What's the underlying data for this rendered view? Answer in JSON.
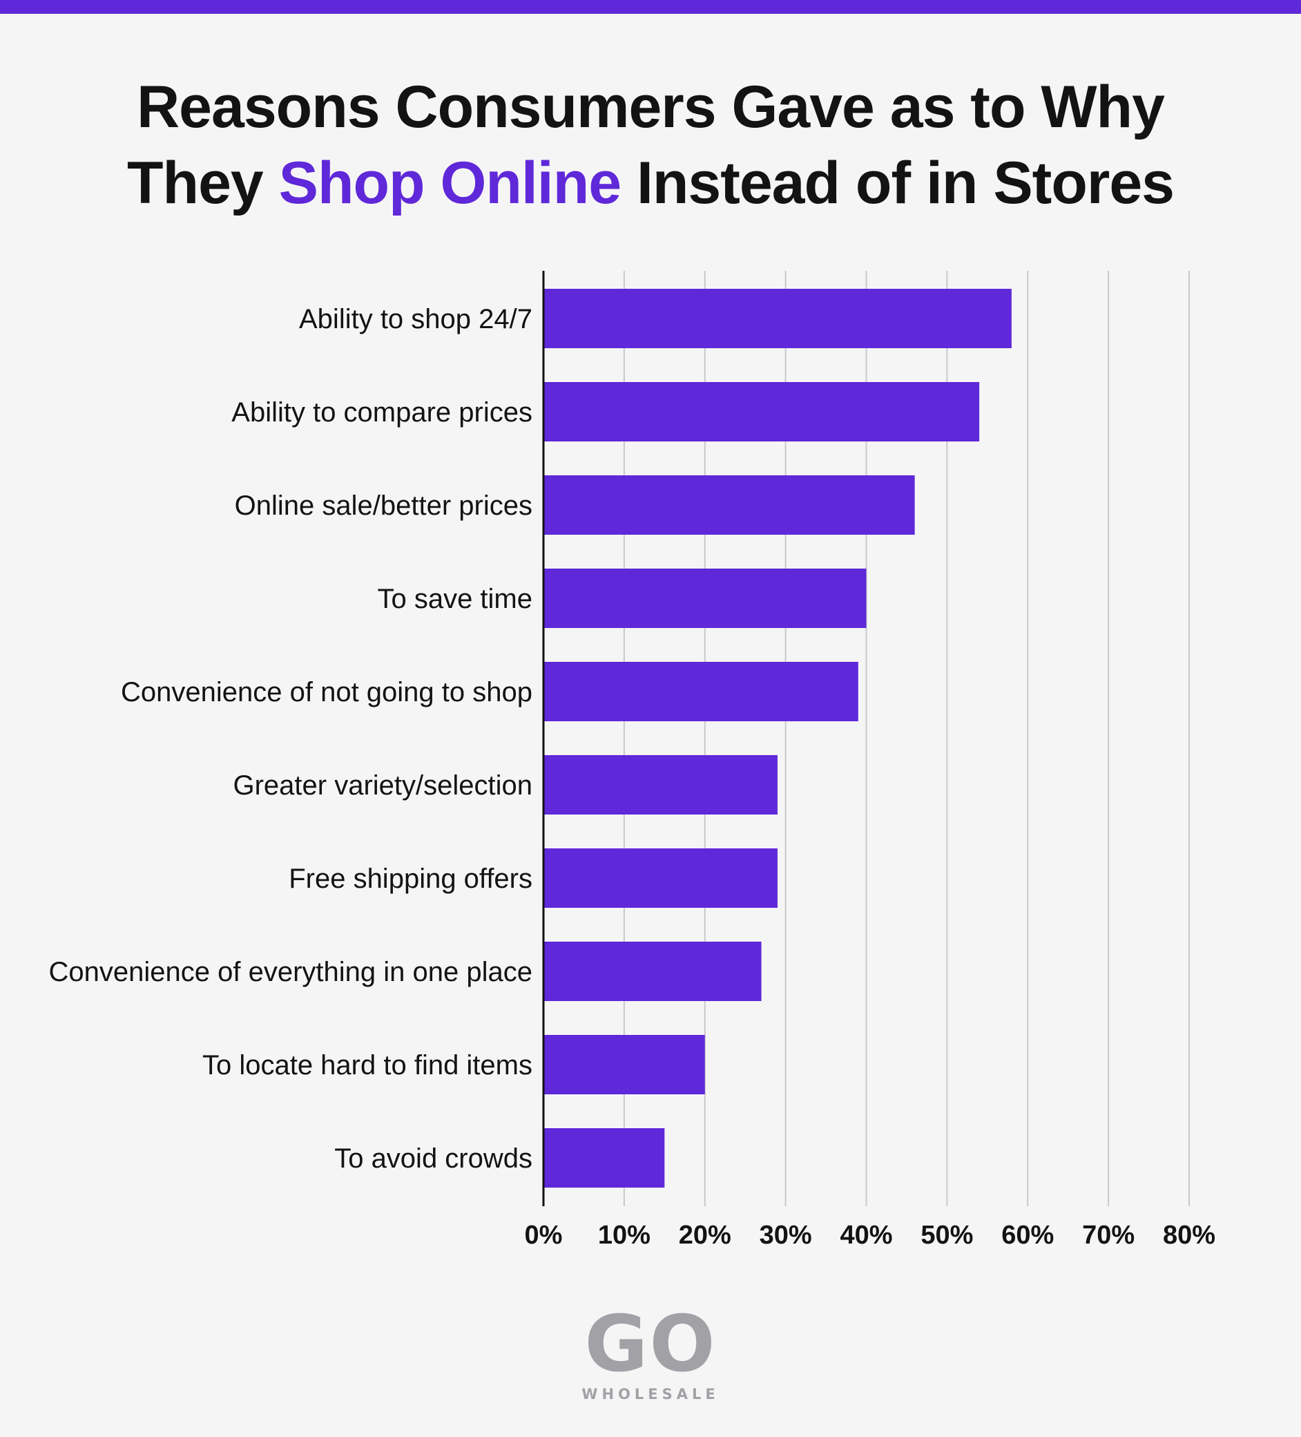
{
  "header": {
    "title_line1": "Reasons Consumers Gave as to Why",
    "title_prefix": "They ",
    "title_highlight": "Shop Online",
    "title_suffix": " Instead of in Stores"
  },
  "colors": {
    "accent": "#5f28d8",
    "bar": "#5f28d8",
    "grid": "#c8c8cc",
    "text": "#131313",
    "logo": "#a2a1a6"
  },
  "chart_data": {
    "type": "bar",
    "orientation": "horizontal",
    "title": "Reasons Consumers Gave as to Why They Shop Online Instead of in Stores",
    "categories": [
      "Ability to shop 24/7",
      "Ability to compare prices",
      "Online sale/better prices",
      "To save time",
      "Convenience of not going to shop",
      "Greater variety/selection",
      "Free shipping offers",
      "Convenience of everything in one place",
      "To locate hard to find items",
      "To avoid crowds"
    ],
    "values": [
      58,
      54,
      46,
      40,
      39,
      29,
      29,
      27,
      20,
      15
    ],
    "xlim": [
      0,
      80
    ],
    "xticks": [
      "0%",
      "10%",
      "20%",
      "30%",
      "40%",
      "50%",
      "60%",
      "70%",
      "80%"
    ],
    "xlabel": "",
    "ylabel": "",
    "grid": true
  },
  "logo": {
    "mark": "GO",
    "sub": "WHOLESALE"
  }
}
